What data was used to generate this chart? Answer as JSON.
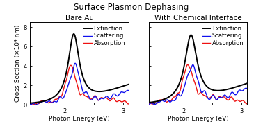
{
  "title": "Surface Plasmon Dephasing",
  "title_fontsize": 8.5,
  "panel1_title": "Bare Au",
  "panel2_title": "With Chemical Interface",
  "subtitle_fontsize": 7.5,
  "xlabel": "Photon Energy (eV)",
  "ylabel": "Cross-Section (×10⁴ nm)",
  "label_fontsize": 6.5,
  "tick_fontsize": 6,
  "legend_fontsize": 6,
  "xlim": [
    1.4,
    3.1
  ],
  "ylim": [
    0,
    8.5
  ],
  "yticks": [
    0,
    2,
    4,
    6,
    8
  ],
  "xticks": [
    1.5,
    2.0,
    2.5,
    3.0
  ],
  "xticklabels": [
    "",
    "2",
    "",
    "3"
  ],
  "colors": {
    "extinction": "#000000",
    "scattering": "#1010ee",
    "absorption": "#ee1010"
  },
  "linewidth": 1.0,
  "bg_color": "#f5f5f5"
}
